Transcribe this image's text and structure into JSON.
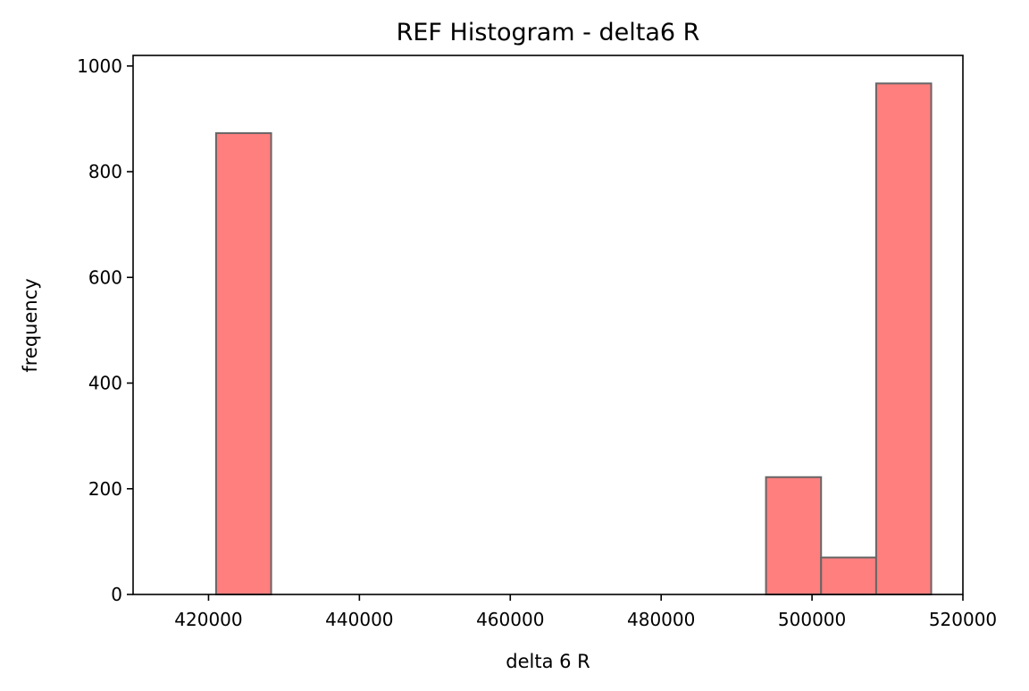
{
  "chart_data": {
    "type": "histogram",
    "title": "REF Histogram - delta6 R",
    "xlabel": "delta 6 R",
    "ylabel": "frequency",
    "xlim": [
      410000,
      520000
    ],
    "ylim": [
      0,
      1020
    ],
    "xticks": [
      420000,
      440000,
      460000,
      480000,
      500000,
      520000
    ],
    "yticks": [
      0,
      200,
      400,
      600,
      800,
      1000
    ],
    "bins": [
      {
        "x0": 421000,
        "x1": 428300,
        "value": 873
      },
      {
        "x0": 493900,
        "x1": 501200,
        "value": 222
      },
      {
        "x0": 501200,
        "x1": 508500,
        "value": 70
      },
      {
        "x0": 508500,
        "x1": 515800,
        "value": 967
      }
    ],
    "bar_color": "#ff7f7f",
    "edge_color": "#666666",
    "grid": false
  }
}
